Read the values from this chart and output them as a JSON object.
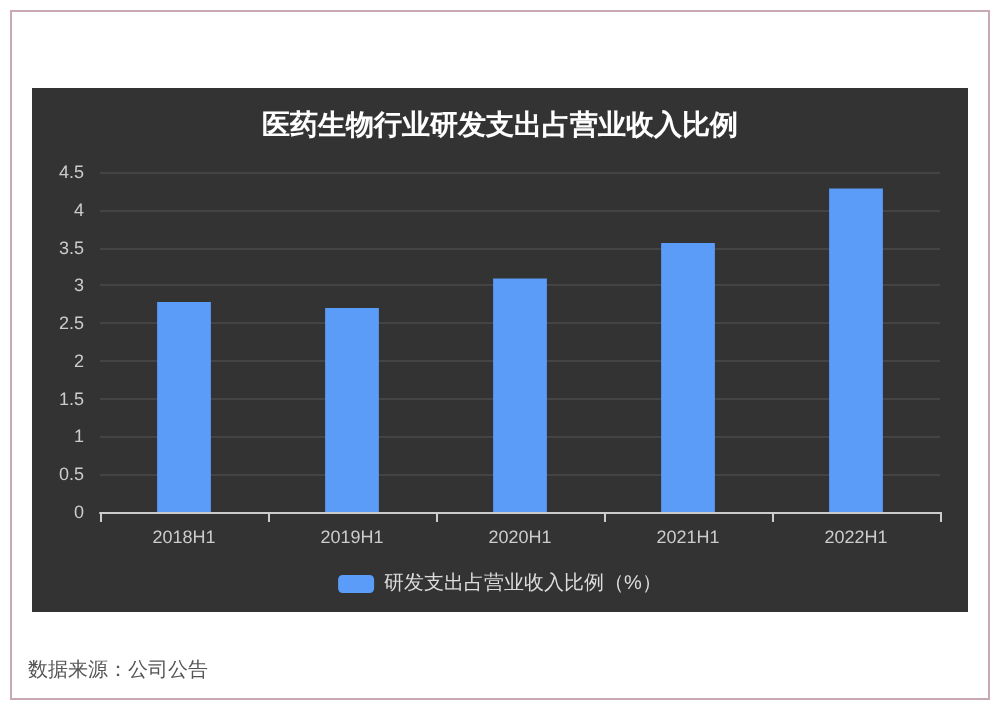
{
  "chart_data": {
    "type": "bar",
    "title": "医药生物行业研发支出占营业收入比例",
    "categories": [
      "2018H1",
      "2019H1",
      "2020H1",
      "2021H1",
      "2022H1"
    ],
    "series": [
      {
        "name": "研发支出占营业收入比例（%）",
        "color": "#5b9cf8",
        "values": [
          2.78,
          2.7,
          3.09,
          3.56,
          4.28
        ]
      }
    ],
    "ylim": [
      0,
      4.5
    ],
    "yticks": [
      0,
      0.5,
      1,
      1.5,
      2,
      2.5,
      3,
      3.5,
      4,
      4.5
    ],
    "grid": "y",
    "legend": "bottom",
    "annotations": [
      "数据来源：公司公告"
    ]
  }
}
